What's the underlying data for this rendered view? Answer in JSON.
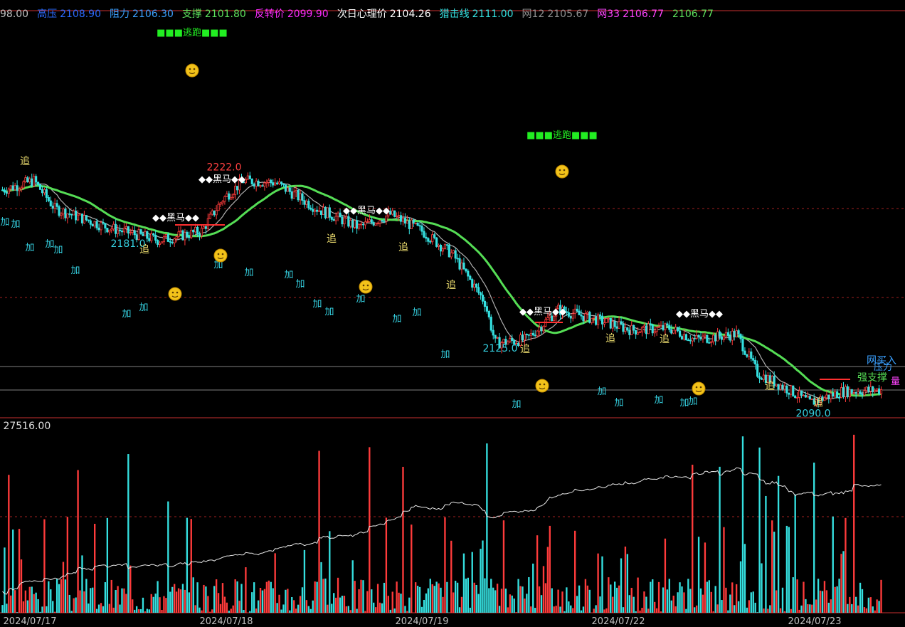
{
  "header": [
    {
      "label": "",
      "value": "98.00",
      "label_color": "#c0c0c0",
      "value_color": "#c0c0c0"
    },
    {
      "label": "高压",
      "value": "2108.90",
      "label_color": "#2b6bff",
      "value_color": "#2b6bff"
    },
    {
      "label": "阻力",
      "value": "2106.30",
      "label_color": "#3aa0ff",
      "value_color": "#3aa0ff"
    },
    {
      "label": "支撑",
      "value": "2101.80",
      "label_color": "#5ce05c",
      "value_color": "#5ce05c"
    },
    {
      "label": "反转价",
      "value": "2099.90",
      "label_color": "#ff2bff",
      "value_color": "#ff2bff"
    },
    {
      "label": "次日心理价",
      "value": "2104.26",
      "label_color": "#ffffff",
      "value_color": "#ffffff"
    },
    {
      "label": "猎击线",
      "value": "2111.00",
      "label_color": "#35e0e0",
      "value_color": "#35e0e0"
    },
    {
      "label": "网12",
      "value": "2105.67",
      "label_color": "#909090",
      "value_color": "#909090"
    },
    {
      "label": "网33",
      "value": "2106.77",
      "label_color": "#ff44ff",
      "value_color": "#ff44ff"
    },
    {
      "label": "",
      "value": "2106.77",
      "label_color": "#5ce05c",
      "value_color": "#5ce05c"
    }
  ],
  "colors": {
    "up": "#ff3b3b",
    "down": "#35e0e0",
    "ma_fast": "#b0b0b0",
    "ma_slow": "#55dd55",
    "highlight": "#ff33ff",
    "signal_add": "#35d0e0",
    "signal_chase": "#f0e070",
    "escape": "#22ee22",
    "panel_border": "#c83030",
    "vol_up": "#ff3b3b",
    "vol_down": "#35e0e0"
  },
  "chart_data": [
    {
      "type": "candlestick",
      "title": "",
      "x": [
        "2024/07/17",
        "2024/07/18",
        "2024/07/19",
        "2024/07/22",
        "2024/07/23"
      ],
      "price_scale": {
        "anchors": [
          [
            2222.0,
            230
          ],
          [
            2181.0,
            350
          ],
          [
            2125.0,
            492
          ],
          [
            2090.0,
            578
          ]
        ]
      },
      "trend": [
        [
          0,
          2210
        ],
        [
          15,
          2215
        ],
        [
          25,
          2200
        ],
        [
          50,
          2190
        ],
        [
          75,
          2183
        ],
        [
          95,
          2188
        ],
        [
          105,
          2205
        ],
        [
          115,
          2215
        ],
        [
          130,
          2214
        ],
        [
          150,
          2200
        ],
        [
          170,
          2190
        ],
        [
          185,
          2197
        ],
        [
          200,
          2188
        ],
        [
          215,
          2175
        ],
        [
          230,
          2150
        ],
        [
          235,
          2128
        ],
        [
          250,
          2130
        ],
        [
          265,
          2146
        ],
        [
          285,
          2140
        ],
        [
          300,
          2135
        ],
        [
          318,
          2136
        ],
        [
          330,
          2130
        ],
        [
          345,
          2132
        ],
        [
          350,
          2133
        ],
        [
          360,
          2112
        ],
        [
          375,
          2103
        ],
        [
          385,
          2096
        ],
        [
          400,
          2102
        ],
        [
          420,
          2103
        ]
      ],
      "annotations": [
        {
          "text": "2222.0",
          "role": "high-label",
          "color": "#ff4040"
        },
        {
          "text": "2181.0",
          "role": "low-label",
          "color": "#35d0e0"
        },
        {
          "text": "2125.0",
          "role": "low-label",
          "color": "#35d0e0"
        },
        {
          "text": "2090.0",
          "role": "low-label",
          "color": "#35d0e0"
        }
      ],
      "signals": {
        "escape": "■■■逃跑■■■",
        "dark_horse": "◆◆黑马◆◆",
        "add": "加",
        "chase": "追",
        "net_buy": "网买入",
        "strong_support": "强支撑",
        "right_edge": [
          "压力",
          "量"
        ]
      }
    },
    {
      "type": "bar",
      "title": "",
      "header_value": "27516.00",
      "series": [
        {
          "values": "generated-from-trend"
        }
      ]
    }
  ]
}
